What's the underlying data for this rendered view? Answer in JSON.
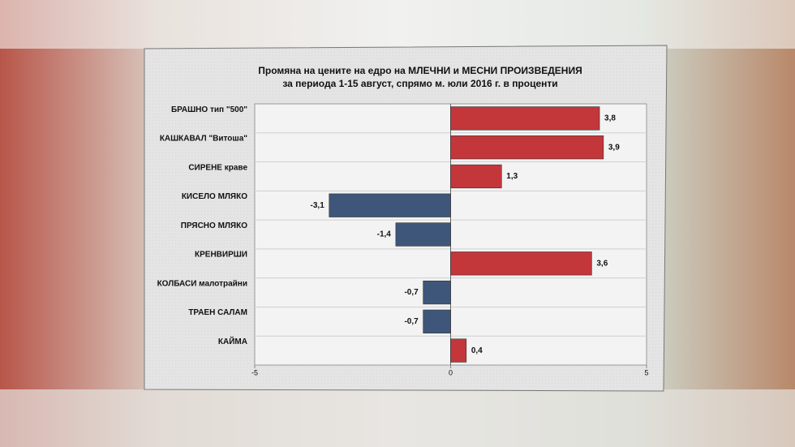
{
  "chart_data": {
    "type": "barh",
    "title": "Промяна на цените на едро на МЛЕЧНИ и МЕСНИ ПРОИЗВЕДЕНИЯ",
    "subtitle": "за периода 1-15 август, спрямо м. юли 2016 г. в проценти",
    "categories": [
      "БРАШНО тип \"500\"",
      "КАШКАВАЛ \"Витоша\"",
      "СИРЕНЕ краве",
      "КИСЕЛО МЛЯКО",
      "ПРЯСНО МЛЯКО",
      "КРЕНВИРШИ",
      "КОЛБАСИ малотрайни",
      "ТРАЕН САЛАМ",
      "КАЙМА"
    ],
    "values": [
      3.8,
      3.9,
      1.3,
      -3.1,
      -1.4,
      3.6,
      -0.7,
      -0.7,
      0.4
    ],
    "value_labels": [
      "3,8",
      "3,9",
      "1,3",
      "-3,1",
      "-1,4",
      "3,6",
      "-0,7",
      "-0,7",
      "0,4"
    ],
    "color_positive": "#c3363a",
    "color_negative": "#3e5679",
    "xlim": [
      -5,
      5
    ],
    "xticks": [
      -5,
      0,
      5
    ]
  }
}
